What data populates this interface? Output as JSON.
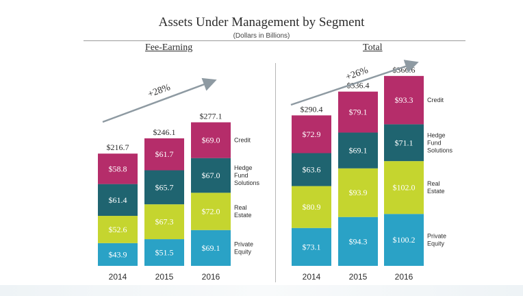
{
  "title": "Assets Under Management by Segment",
  "subtitle": "(Dollars in Billions)",
  "colors": {
    "Credit": "#b52d6a",
    "Hedge Fund Solutions": "#1f6470",
    "Real Estate": "#c5d52f",
    "Private Equity": "#2aa2c6",
    "arrow": "#8e9aa2"
  },
  "legend_lines": {
    "Credit": [
      "Credit"
    ],
    "Hedge Fund Solutions": [
      "Hedge",
      "Fund",
      "Solutions"
    ],
    "Real Estate": [
      "Real",
      "Estate"
    ],
    "Private Equity": [
      "Private",
      "Equity"
    ]
  },
  "chart_data": [
    {
      "type": "bar",
      "stacked": true,
      "title": "Fee-Earning",
      "categories": [
        "2014",
        "2015",
        "2016"
      ],
      "series": [
        {
          "name": "Private Equity",
          "values": [
            43.9,
            51.5,
            69.1
          ],
          "labels": [
            "$43.9",
            "$51.5",
            "$69.1"
          ]
        },
        {
          "name": "Real Estate",
          "values": [
            52.6,
            67.3,
            72.0
          ],
          "labels": [
            "$52.6",
            "$67.3",
            "$72.0"
          ]
        },
        {
          "name": "Hedge Fund Solutions",
          "values": [
            61.4,
            65.7,
            67.0
          ],
          "labels": [
            "$61.4",
            "$65.7",
            "$67.0"
          ]
        },
        {
          "name": "Credit",
          "values": [
            58.8,
            61.7,
            69.0
          ],
          "labels": [
            "$58.8",
            "$61.7",
            "$69.0"
          ]
        }
      ],
      "totals": [
        216.7,
        246.1,
        277.1
      ],
      "total_labels": [
        "$216.7",
        "$246.1",
        "$277.1"
      ],
      "growth": "+28%"
    },
    {
      "type": "bar",
      "stacked": true,
      "title": "Total",
      "categories": [
        "2014",
        "2015",
        "2016"
      ],
      "series": [
        {
          "name": "Private Equity",
          "values": [
            73.1,
            94.3,
            100.2
          ],
          "labels": [
            "$73.1",
            "$94.3",
            "$100.2"
          ]
        },
        {
          "name": "Real Estate",
          "values": [
            80.9,
            93.9,
            102.0
          ],
          "labels": [
            "$80.9",
            "$93.9",
            "$102.0"
          ]
        },
        {
          "name": "Hedge Fund Solutions",
          "values": [
            63.6,
            69.1,
            71.1
          ],
          "labels": [
            "$63.6",
            "$69.1",
            "$71.1"
          ]
        },
        {
          "name": "Credit",
          "values": [
            72.9,
            79.1,
            93.3
          ],
          "labels": [
            "$72.9",
            "$79.1",
            "$93.3"
          ]
        }
      ],
      "totals": [
        290.4,
        336.4,
        366.6
      ],
      "total_labels": [
        "$290.4",
        "$336.4",
        "$366.6"
      ],
      "growth": "+26%"
    }
  ]
}
